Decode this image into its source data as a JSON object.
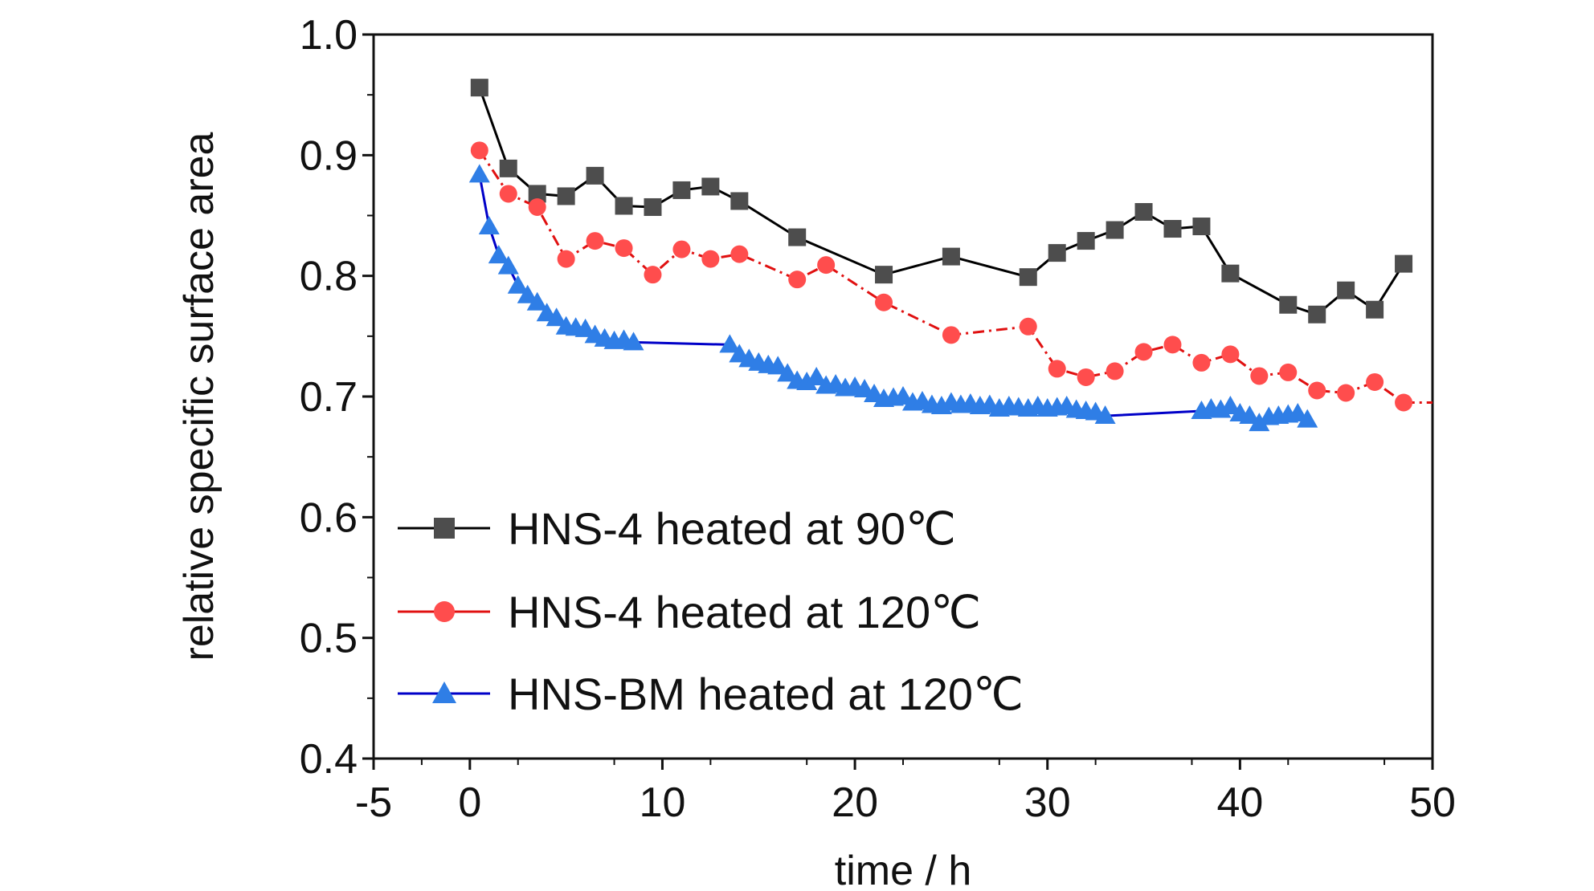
{
  "chart_data": {
    "type": "line",
    "xlabel": "time / h",
    "ylabel": "relative specific surface area",
    "xlim": [
      -5,
      50
    ],
    "ylim": [
      0.4,
      1.0
    ],
    "x_ticks": [
      "-5",
      "0",
      "10",
      "20",
      "30",
      "40",
      "50"
    ],
    "y_ticks": [
      "0.4",
      "0.5",
      "0.6",
      "0.7",
      "0.8",
      "0.9",
      "1.0"
    ],
    "grid": false,
    "legend_position": "bottom-left",
    "series": [
      {
        "name": "HNS-4 heated at 90℃",
        "color": "#000000",
        "marker_color": "#4d4d4d",
        "marker": "square",
        "line_style": "solid",
        "points": [
          [
            0.5,
            0.956
          ],
          [
            2.0,
            0.889
          ],
          [
            3.5,
            0.868
          ],
          [
            5.0,
            0.866
          ],
          [
            6.5,
            0.883
          ],
          [
            8.0,
            0.858
          ],
          [
            9.5,
            0.857
          ],
          [
            11.0,
            0.871
          ],
          [
            12.5,
            0.874
          ],
          [
            14.0,
            0.862
          ],
          [
            17.0,
            0.832
          ],
          [
            21.5,
            0.801
          ],
          [
            25.0,
            0.816
          ],
          [
            29.0,
            0.799
          ],
          [
            30.5,
            0.819
          ],
          [
            32.0,
            0.829
          ],
          [
            33.5,
            0.838
          ],
          [
            35.0,
            0.853
          ],
          [
            36.5,
            0.839
          ],
          [
            38.0,
            0.841
          ],
          [
            39.5,
            0.802
          ],
          [
            42.5,
            0.776
          ],
          [
            44.0,
            0.768
          ],
          [
            45.5,
            0.788
          ],
          [
            47.0,
            0.772
          ],
          [
            48.5,
            0.81
          ]
        ]
      },
      {
        "name": "HNS-4 heated at 120℃",
        "color": "#e01010",
        "marker_color": "#ff4d4d",
        "marker": "circle",
        "line_style": "dashdot",
        "points": [
          [
            0.5,
            0.904
          ],
          [
            2.0,
            0.868
          ],
          [
            3.5,
            0.857
          ],
          [
            5.0,
            0.814
          ],
          [
            6.5,
            0.829
          ],
          [
            8.0,
            0.823
          ],
          [
            9.5,
            0.801
          ],
          [
            11.0,
            0.822
          ],
          [
            12.5,
            0.814
          ],
          [
            14.0,
            0.818
          ],
          [
            17.0,
            0.797
          ],
          [
            18.5,
            0.809
          ],
          [
            21.5,
            0.778
          ],
          [
            25.0,
            0.751
          ],
          [
            29.0,
            0.758
          ],
          [
            30.5,
            0.723
          ],
          [
            32.0,
            0.716
          ],
          [
            33.5,
            0.721
          ],
          [
            35.0,
            0.737
          ],
          [
            36.5,
            0.743
          ],
          [
            38.0,
            0.728
          ],
          [
            39.5,
            0.735
          ],
          [
            41.0,
            0.717
          ],
          [
            42.5,
            0.72
          ],
          [
            44.0,
            0.705
          ],
          [
            45.5,
            0.703
          ],
          [
            47.0,
            0.712
          ],
          [
            48.5,
            0.695
          ],
          [
            50.0,
            0.695
          ]
        ]
      },
      {
        "name": "HNS-BM heated at 120℃",
        "color": "#0000c8",
        "marker_color": "#2f7ee6",
        "marker": "triangle",
        "line_style": "solid",
        "points": [
          [
            0.5,
            0.884
          ],
          [
            1.0,
            0.841
          ],
          [
            1.5,
            0.817
          ],
          [
            2.0,
            0.808
          ],
          [
            2.5,
            0.792
          ],
          [
            3.0,
            0.784
          ],
          [
            3.5,
            0.778
          ],
          [
            4.0,
            0.769
          ],
          [
            4.5,
            0.765
          ],
          [
            5.0,
            0.758
          ],
          [
            5.5,
            0.757
          ],
          [
            6.0,
            0.756
          ],
          [
            6.5,
            0.751
          ],
          [
            7.0,
            0.748
          ],
          [
            7.5,
            0.746
          ],
          [
            8.0,
            0.747
          ],
          [
            8.5,
            0.745
          ],
          [
            13.5,
            0.743
          ],
          [
            14.0,
            0.735
          ],
          [
            14.5,
            0.731
          ],
          [
            15.0,
            0.728
          ],
          [
            15.5,
            0.726
          ],
          [
            16.0,
            0.725
          ],
          [
            16.5,
            0.719
          ],
          [
            17.0,
            0.713
          ],
          [
            17.5,
            0.712
          ],
          [
            18.0,
            0.716
          ],
          [
            18.5,
            0.709
          ],
          [
            19.0,
            0.71
          ],
          [
            19.5,
            0.707
          ],
          [
            20.0,
            0.708
          ],
          [
            20.5,
            0.706
          ],
          [
            21.0,
            0.702
          ],
          [
            21.5,
            0.698
          ],
          [
            22.0,
            0.699
          ],
          [
            22.5,
            0.7
          ],
          [
            23.0,
            0.695
          ],
          [
            23.5,
            0.696
          ],
          [
            24.0,
            0.693
          ],
          [
            24.5,
            0.692
          ],
          [
            25.0,
            0.695
          ],
          [
            25.5,
            0.693
          ],
          [
            26.0,
            0.694
          ],
          [
            26.5,
            0.692
          ],
          [
            27.0,
            0.693
          ],
          [
            27.5,
            0.69
          ],
          [
            28.0,
            0.692
          ],
          [
            28.5,
            0.691
          ],
          [
            29.0,
            0.69
          ],
          [
            29.5,
            0.692
          ],
          [
            30.0,
            0.69
          ],
          [
            30.5,
            0.691
          ],
          [
            31.0,
            0.692
          ],
          [
            31.5,
            0.689
          ],
          [
            32.0,
            0.688
          ],
          [
            32.5,
            0.687
          ],
          [
            33.0,
            0.684
          ],
          [
            38.0,
            0.688
          ],
          [
            38.5,
            0.69
          ],
          [
            39.0,
            0.689
          ],
          [
            39.5,
            0.692
          ],
          [
            40.0,
            0.686
          ],
          [
            40.5,
            0.684
          ],
          [
            41.0,
            0.678
          ],
          [
            41.5,
            0.683
          ],
          [
            42.0,
            0.684
          ],
          [
            42.5,
            0.685
          ],
          [
            43.0,
            0.686
          ],
          [
            43.5,
            0.681
          ]
        ]
      }
    ]
  }
}
